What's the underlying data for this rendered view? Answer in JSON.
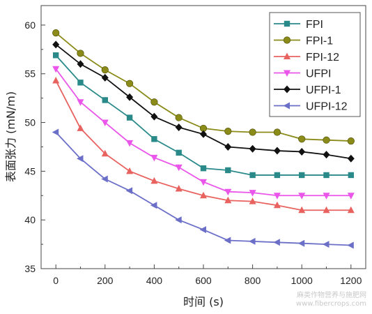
{
  "chart_data": {
    "type": "line",
    "title": "",
    "xlabel": "时间 (s)",
    "ylabel": "表面张力 (mN/m)",
    "xlim": [
      -60,
      1260
    ],
    "ylim": [
      35,
      62
    ],
    "xticks": [
      0,
      200,
      400,
      600,
      800,
      1000,
      1200
    ],
    "yticks": [
      35,
      40,
      45,
      50,
      55,
      60
    ],
    "grid": false,
    "legend_position": "top-right",
    "x": [
      0,
      100,
      200,
      300,
      400,
      500,
      600,
      700,
      800,
      900,
      1000,
      1100,
      1200
    ],
    "series": [
      {
        "name": "FPI",
        "color": "#2a8a8a",
        "marker": "square",
        "values": [
          56.9,
          54.1,
          52.3,
          50.5,
          48.3,
          46.9,
          45.3,
          45.1,
          44.6,
          44.6,
          44.6,
          44.6,
          44.6
        ]
      },
      {
        "name": "FPI-1",
        "color": "#8b8b1a",
        "marker": "circle",
        "values": [
          59.2,
          57.1,
          55.4,
          54.0,
          52.1,
          50.5,
          49.4,
          49.1,
          49.0,
          49.0,
          48.3,
          48.2,
          48.1
        ]
      },
      {
        "name": "FPI-12",
        "color": "#e8625f",
        "marker": "triangle-up",
        "values": [
          54.3,
          49.4,
          46.8,
          45.0,
          44.0,
          43.2,
          42.5,
          42.0,
          41.9,
          41.5,
          41.0,
          41.0,
          41.0
        ]
      },
      {
        "name": "UFPI",
        "color": "#ea55ea",
        "marker": "triangle-down",
        "values": [
          55.5,
          52.1,
          50.0,
          47.9,
          46.4,
          45.4,
          43.9,
          42.9,
          42.8,
          42.5,
          42.5,
          42.5,
          42.5
        ]
      },
      {
        "name": "UFPI-1",
        "color": "#111111",
        "marker": "diamond",
        "values": [
          58.0,
          56.0,
          54.6,
          52.6,
          50.6,
          49.5,
          48.8,
          47.5,
          47.3,
          47.1,
          47.0,
          46.7,
          46.3
        ]
      },
      {
        "name": "UFPI-12",
        "color": "#6b6fc7",
        "marker": "triangle-left",
        "values": [
          49.0,
          46.3,
          44.2,
          43.0,
          41.5,
          40.0,
          39.0,
          37.9,
          37.8,
          37.7,
          37.6,
          37.5,
          37.4
        ]
      }
    ]
  },
  "watermark": {
    "line1": "麻类作物营养与施肥网",
    "line2": "www.fibercrops.com"
  }
}
